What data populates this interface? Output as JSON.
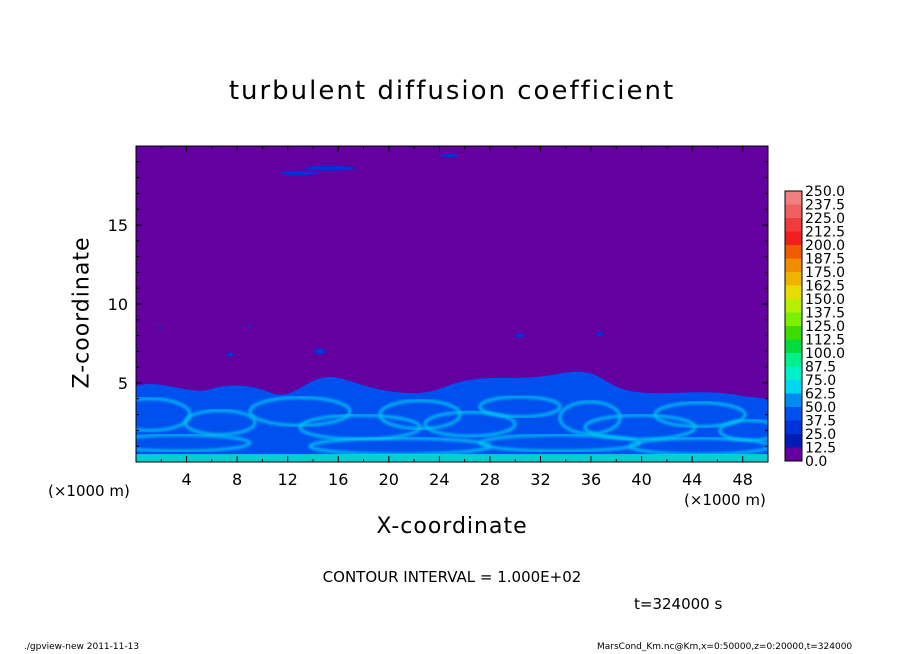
{
  "chart_data": {
    "type": "heatmap",
    "title": "turbulent diffusion coefficient",
    "xlabel": "X-coordinate",
    "ylabel": "Z-coordinate",
    "x_unit": "(×1000 m)",
    "y_unit": "(×1000 m)",
    "xlim": [
      0,
      50
    ],
    "ylim": [
      0,
      20
    ],
    "x_ticks": [
      4,
      8,
      12,
      16,
      20,
      24,
      28,
      32,
      36,
      40,
      44,
      48
    ],
    "y_ticks": [
      5,
      10,
      15
    ],
    "colorbar": {
      "levels": [
        250.0,
        237.5,
        225.0,
        212.5,
        200.0,
        187.5,
        175.0,
        162.5,
        150.0,
        137.5,
        125.0,
        112.5,
        100.0,
        87.5,
        75.0,
        62.5,
        50.0,
        37.5,
        25.0,
        12.5,
        0.0
      ],
      "level_labels": [
        "250.0",
        "237.5",
        "225.0",
        "212.5",
        "200.0",
        "187.5",
        "175.0",
        "162.5",
        "150.0",
        "137.5",
        "125.0",
        "112.5",
        "100.0",
        "87.5",
        "75.0",
        "62.5",
        "50.0",
        "37.5",
        "25.0",
        "12.5",
        "0.0"
      ],
      "colors": [
        "#f08080",
        "#f06060",
        "#f03c3c",
        "#f01e1e",
        "#f05a00",
        "#f08c00",
        "#f0b400",
        "#e6dc00",
        "#b4f000",
        "#7cf000",
        "#3cdc00",
        "#00dc3c",
        "#00f08c",
        "#00f0c8",
        "#00d7f0",
        "#008cf0",
        "#0050f0",
        "#0032dc",
        "#001eb4",
        "#6400a0"
      ]
    },
    "contour_interval": "CONTOUR INTERVAL = 1.000E+02",
    "time": "t=324000 s"
  },
  "footer": {
    "left": "./gpview-new   2011-11-13",
    "right": "MarsCond_Km.nc@Km,x=0:50000,z=0:20000,t=324000"
  }
}
